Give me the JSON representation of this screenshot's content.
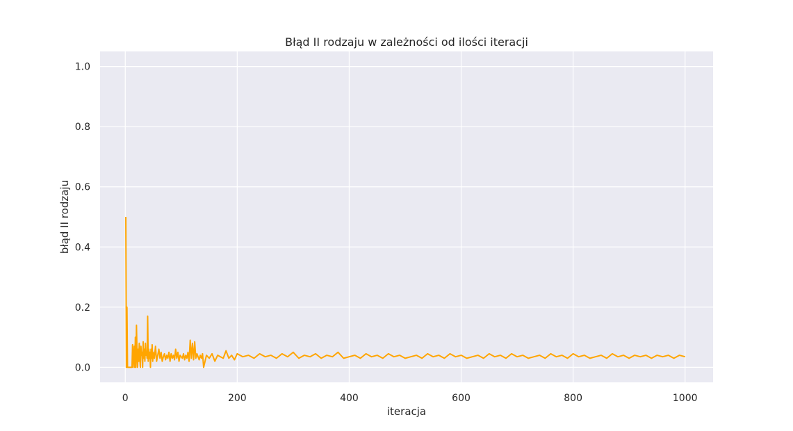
{
  "chart_data": {
    "type": "line",
    "title": "Błąd II rodzaju w zależności od ilości iteracji",
    "xlabel": "iteracja",
    "ylabel": "błąd II rodzaju",
    "xlim": [
      -45,
      1050
    ],
    "ylim": [
      -0.05,
      1.05
    ],
    "grid": true,
    "x_ticks": [
      0,
      200,
      400,
      600,
      800,
      1000
    ],
    "y_ticks": [
      0.0,
      0.2,
      0.4,
      0.6,
      0.8,
      1.0
    ],
    "x_tick_labels": [
      "0",
      "200",
      "400",
      "600",
      "800",
      "1000"
    ],
    "y_tick_labels": [
      "0.0",
      "0.2",
      "0.4",
      "0.6",
      "0.8",
      "1.0"
    ],
    "series": [
      {
        "color": "#ffa500",
        "x": [
          1,
          2,
          3,
          4,
          5,
          6,
          8,
          10,
          12,
          13,
          14,
          16,
          17,
          18,
          19,
          20,
          21,
          22,
          23,
          24,
          25,
          26,
          27,
          28,
          29,
          30,
          31,
          32,
          33,
          34,
          35,
          36,
          37,
          38,
          39,
          40,
          41,
          42,
          43,
          44,
          45,
          46,
          47,
          48,
          49,
          50,
          52,
          54,
          56,
          58,
          60,
          62,
          64,
          66,
          68,
          70,
          72,
          74,
          76,
          78,
          80,
          82,
          84,
          86,
          88,
          90,
          92,
          94,
          96,
          98,
          100,
          102,
          104,
          106,
          108,
          110,
          112,
          114,
          116,
          118,
          120,
          122,
          124,
          126,
          128,
          130,
          132,
          134,
          136,
          138,
          140,
          145,
          150,
          155,
          160,
          165,
          170,
          175,
          180,
          185,
          190,
          195,
          200,
          210,
          220,
          230,
          240,
          250,
          260,
          270,
          280,
          290,
          300,
          310,
          320,
          330,
          340,
          350,
          360,
          370,
          380,
          390,
          400,
          410,
          420,
          430,
          440,
          450,
          460,
          470,
          480,
          490,
          500,
          510,
          520,
          530,
          540,
          550,
          560,
          570,
          580,
          590,
          600,
          610,
          620,
          630,
          640,
          650,
          660,
          670,
          680,
          690,
          700,
          710,
          720,
          730,
          740,
          750,
          760,
          770,
          780,
          790,
          800,
          810,
          820,
          830,
          840,
          850,
          860,
          870,
          880,
          890,
          900,
          910,
          920,
          930,
          940,
          950,
          960,
          970,
          980,
          990,
          1000
        ],
        "y": [
          0.5,
          0.0,
          0.2,
          0.0,
          0.0,
          0.0,
          0.0,
          0.0,
          0.0,
          0.075,
          0.0,
          0.07,
          0.0,
          0.1,
          0.0,
          0.14,
          0.05,
          0.0,
          0.06,
          0.02,
          0.08,
          0.03,
          0.0,
          0.07,
          0.04,
          0.05,
          0.0,
          0.085,
          0.03,
          0.06,
          0.02,
          0.08,
          0.04,
          0.05,
          0.03,
          0.17,
          0.02,
          0.06,
          0.03,
          0.05,
          0.0,
          0.06,
          0.03,
          0.075,
          0.02,
          0.05,
          0.03,
          0.07,
          0.02,
          0.04,
          0.06,
          0.03,
          0.05,
          0.02,
          0.035,
          0.045,
          0.025,
          0.04,
          0.03,
          0.05,
          0.02,
          0.045,
          0.03,
          0.04,
          0.025,
          0.06,
          0.03,
          0.05,
          0.02,
          0.04,
          0.035,
          0.03,
          0.045,
          0.025,
          0.04,
          0.03,
          0.05,
          0.02,
          0.09,
          0.03,
          0.08,
          0.025,
          0.085,
          0.03,
          0.045,
          0.035,
          0.025,
          0.04,
          0.03,
          0.045,
          0.0,
          0.04,
          0.03,
          0.045,
          0.02,
          0.04,
          0.035,
          0.03,
          0.055,
          0.03,
          0.04,
          0.025,
          0.045,
          0.035,
          0.04,
          0.03,
          0.045,
          0.035,
          0.04,
          0.03,
          0.045,
          0.035,
          0.05,
          0.03,
          0.04,
          0.035,
          0.045,
          0.03,
          0.04,
          0.035,
          0.05,
          0.03,
          0.035,
          0.04,
          0.03,
          0.045,
          0.035,
          0.04,
          0.03,
          0.045,
          0.035,
          0.04,
          0.03,
          0.035,
          0.04,
          0.03,
          0.045,
          0.035,
          0.04,
          0.03,
          0.045,
          0.035,
          0.04,
          0.03,
          0.035,
          0.04,
          0.03,
          0.045,
          0.035,
          0.04,
          0.03,
          0.045,
          0.035,
          0.04,
          0.03,
          0.035,
          0.04,
          0.03,
          0.045,
          0.035,
          0.04,
          0.03,
          0.045,
          0.035,
          0.04,
          0.03,
          0.035,
          0.04,
          0.03,
          0.045,
          0.035,
          0.04,
          0.03,
          0.04,
          0.035,
          0.04,
          0.03,
          0.04,
          0.035,
          0.04,
          0.03,
          0.04,
          0.035
        ]
      }
    ]
  },
  "colors": {
    "plot_bg": "#eaeaf2",
    "grid": "#ffffff",
    "line": "#ffa500",
    "text": "#262626"
  }
}
